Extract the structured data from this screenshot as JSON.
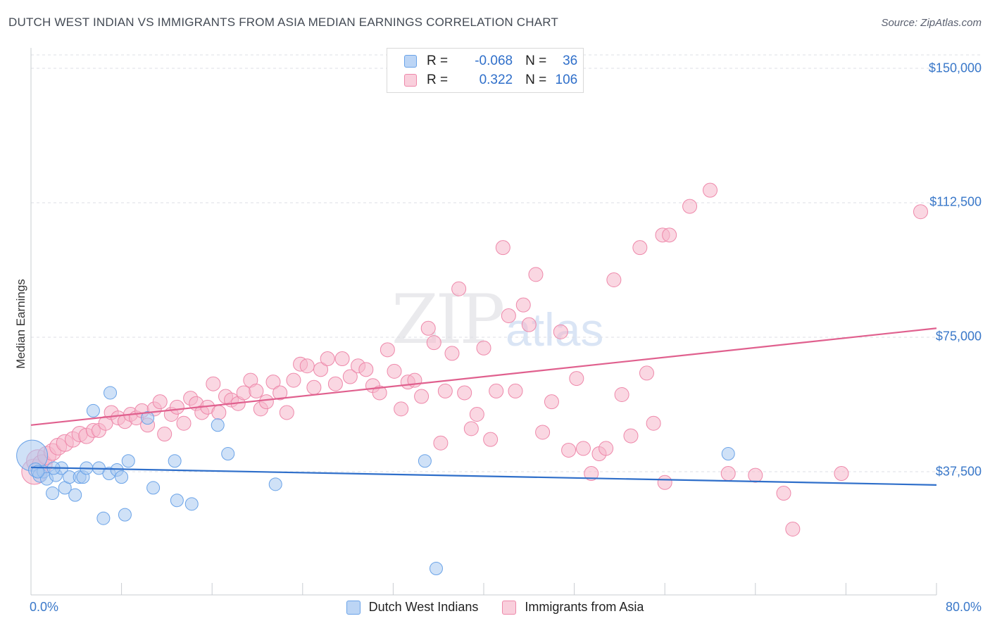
{
  "title": "DUTCH WEST INDIAN VS IMMIGRANTS FROM ASIA MEDIAN EARNINGS CORRELATION CHART",
  "source": "Source: ZipAtlas.com",
  "watermark": {
    "zip": "ZIP",
    "atlas": "atlas"
  },
  "legend": {
    "rows": [
      {
        "r_label": "R =",
        "r_value": "-0.068",
        "n_label": "N =",
        "n_value": "36",
        "color": "#a8c8f0"
      },
      {
        "r_label": "R =",
        "r_value": "0.322",
        "n_label": "N =",
        "n_value": "106",
        "color": "#f5b7cb"
      }
    ]
  },
  "chart_data": {
    "type": "scatter",
    "title": "DUTCH WEST INDIAN VS IMMIGRANTS FROM ASIA MEDIAN EARNINGS CORRELATION CHART",
    "xlabel": "",
    "ylabel": "Median Earnings",
    "xlim": [
      0,
      80
    ],
    "ylim": [
      0,
      155000
    ],
    "x_tick_labels": [
      "0.0%",
      "80.0%"
    ],
    "y_ticks": [
      37500,
      75000,
      112500,
      150000
    ],
    "y_tick_labels": [
      "$37,500",
      "$75,000",
      "$112,500",
      "$150,000"
    ],
    "grid": true,
    "legend_position": "top-center",
    "series": [
      {
        "name": "Dutch West Indians",
        "color": "#6aa3e8",
        "fill": "#a8c8f0",
        "trend": {
          "x": [
            0,
            80
          ],
          "y": [
            38700,
            33800
          ]
        },
        "points": [
          [
            0.1,
            42000,
            22
          ],
          [
            0.4,
            38000,
            10
          ],
          [
            0.8,
            36500,
            10
          ],
          [
            1.1,
            37500,
            9
          ],
          [
            1.4,
            35500,
            9
          ],
          [
            1.9,
            31500,
            9
          ],
          [
            2.2,
            36500,
            9
          ],
          [
            2.7,
            38500,
            9
          ],
          [
            3.0,
            33000,
            9
          ],
          [
            3.4,
            36000,
            9
          ],
          [
            3.9,
            31000,
            9
          ],
          [
            4.3,
            36000,
            9
          ],
          [
            4.6,
            36000,
            9
          ],
          [
            4.9,
            38500,
            9
          ],
          [
            5.5,
            54500,
            9
          ],
          [
            6.0,
            38500,
            9
          ],
          [
            6.4,
            24500,
            9
          ],
          [
            6.9,
            37000,
            9
          ],
          [
            7.0,
            59500,
            9
          ],
          [
            7.6,
            38000,
            9
          ],
          [
            8.0,
            36000,
            9
          ],
          [
            8.3,
            25500,
            9
          ],
          [
            8.6,
            40500,
            9
          ],
          [
            10.3,
            52500,
            9
          ],
          [
            10.8,
            33000,
            9
          ],
          [
            12.7,
            40500,
            9
          ],
          [
            12.9,
            29500,
            9
          ],
          [
            14.2,
            28500,
            9
          ],
          [
            16.5,
            50500,
            9
          ],
          [
            17.4,
            42500,
            9
          ],
          [
            21.6,
            34000,
            9
          ],
          [
            34.8,
            40500,
            9
          ],
          [
            35.8,
            10500,
            9
          ],
          [
            61.6,
            42500,
            9
          ],
          [
            0.6,
            37500,
            9
          ],
          [
            2.0,
            38500,
            9
          ]
        ]
      },
      {
        "name": "Immigrants from Asia",
        "color": "#ee88aa",
        "fill": "#f5b7cb",
        "trend": {
          "x": [
            0,
            80
          ],
          "y": [
            50500,
            77500
          ]
        },
        "points": [
          [
            0.3,
            37500,
            18
          ],
          [
            0.6,
            40500,
            16
          ],
          [
            1.0,
            39500,
            14
          ],
          [
            1.4,
            42000,
            13
          ],
          [
            1.9,
            43000,
            12
          ],
          [
            2.4,
            44500,
            12
          ],
          [
            3.0,
            45500,
            12
          ],
          [
            3.7,
            46500,
            11
          ],
          [
            4.3,
            48000,
            11
          ],
          [
            4.9,
            47500,
            11
          ],
          [
            5.5,
            49000,
            10
          ],
          [
            6.0,
            49000,
            10
          ],
          [
            6.6,
            51000,
            10
          ],
          [
            7.1,
            54000,
            10
          ],
          [
            7.7,
            52500,
            10
          ],
          [
            8.3,
            51500,
            10
          ],
          [
            8.8,
            53500,
            10
          ],
          [
            9.3,
            52500,
            10
          ],
          [
            9.8,
            54500,
            10
          ],
          [
            10.3,
            50500,
            10
          ],
          [
            10.9,
            55000,
            10
          ],
          [
            11.4,
            57000,
            10
          ],
          [
            11.8,
            48000,
            10
          ],
          [
            12.4,
            53500,
            10
          ],
          [
            12.9,
            55500,
            10
          ],
          [
            13.5,
            51000,
            10
          ],
          [
            14.1,
            58000,
            10
          ],
          [
            14.6,
            56500,
            10
          ],
          [
            15.1,
            54000,
            10
          ],
          [
            15.6,
            55500,
            10
          ],
          [
            16.1,
            62000,
            10
          ],
          [
            16.6,
            54000,
            10
          ],
          [
            17.2,
            58500,
            10
          ],
          [
            17.7,
            57500,
            10
          ],
          [
            18.3,
            56500,
            10
          ],
          [
            18.8,
            59500,
            10
          ],
          [
            19.4,
            63000,
            10
          ],
          [
            19.9,
            60000,
            10
          ],
          [
            20.3,
            55000,
            10
          ],
          [
            20.8,
            57000,
            10
          ],
          [
            21.4,
            62500,
            10
          ],
          [
            22.0,
            59500,
            10
          ],
          [
            22.6,
            54000,
            10
          ],
          [
            23.2,
            63000,
            10
          ],
          [
            23.8,
            67500,
            10
          ],
          [
            24.4,
            67000,
            10
          ],
          [
            25.0,
            61000,
            10
          ],
          [
            25.6,
            66000,
            10
          ],
          [
            26.2,
            69000,
            10
          ],
          [
            26.9,
            62000,
            10
          ],
          [
            27.5,
            69000,
            10
          ],
          [
            28.2,
            64000,
            10
          ],
          [
            28.9,
            67000,
            10
          ],
          [
            29.6,
            66000,
            10
          ],
          [
            30.2,
            61500,
            10
          ],
          [
            30.8,
            59500,
            10
          ],
          [
            31.5,
            71500,
            10
          ],
          [
            32.1,
            65500,
            10
          ],
          [
            32.7,
            55000,
            10
          ],
          [
            33.3,
            62500,
            10
          ],
          [
            33.9,
            63000,
            10
          ],
          [
            34.5,
            58500,
            10
          ],
          [
            35.1,
            77500,
            10
          ],
          [
            35.6,
            73500,
            10
          ],
          [
            36.2,
            45500,
            10
          ],
          [
            36.6,
            60000,
            10
          ],
          [
            37.2,
            70500,
            10
          ],
          [
            37.8,
            88500,
            10
          ],
          [
            38.3,
            59500,
            10
          ],
          [
            38.9,
            49500,
            10
          ],
          [
            39.4,
            53500,
            10
          ],
          [
            40.0,
            72000,
            10
          ],
          [
            40.6,
            46500,
            10
          ],
          [
            41.1,
            60000,
            10
          ],
          [
            41.7,
            100000,
            10
          ],
          [
            42.2,
            81000,
            10
          ],
          [
            42.8,
            60000,
            10
          ],
          [
            43.5,
            84000,
            10
          ],
          [
            44.0,
            78500,
            10
          ],
          [
            44.6,
            92500,
            10
          ],
          [
            45.2,
            48500,
            10
          ],
          [
            46.0,
            57000,
            10
          ],
          [
            46.8,
            76500,
            10
          ],
          [
            47.5,
            43500,
            10
          ],
          [
            48.2,
            63500,
            10
          ],
          [
            48.8,
            44000,
            10
          ],
          [
            49.5,
            37000,
            10
          ],
          [
            50.2,
            42500,
            10
          ],
          [
            50.8,
            44000,
            10
          ],
          [
            51.5,
            91000,
            10
          ],
          [
            52.2,
            59000,
            10
          ],
          [
            53.0,
            47500,
            10
          ],
          [
            53.8,
            100000,
            10
          ],
          [
            54.4,
            65000,
            10
          ],
          [
            55.0,
            51000,
            10
          ],
          [
            55.8,
            103500,
            10
          ],
          [
            56.4,
            103500,
            10
          ],
          [
            58.2,
            111500,
            10
          ],
          [
            60.0,
            116000,
            10
          ],
          [
            61.6,
            37000,
            10
          ],
          [
            64.0,
            36500,
            10
          ],
          [
            66.5,
            31500,
            10
          ],
          [
            67.3,
            21500,
            10
          ],
          [
            71.6,
            37000,
            10
          ],
          [
            78.6,
            110000,
            10
          ],
          [
            56.0,
            34500,
            10
          ]
        ]
      }
    ]
  }
}
